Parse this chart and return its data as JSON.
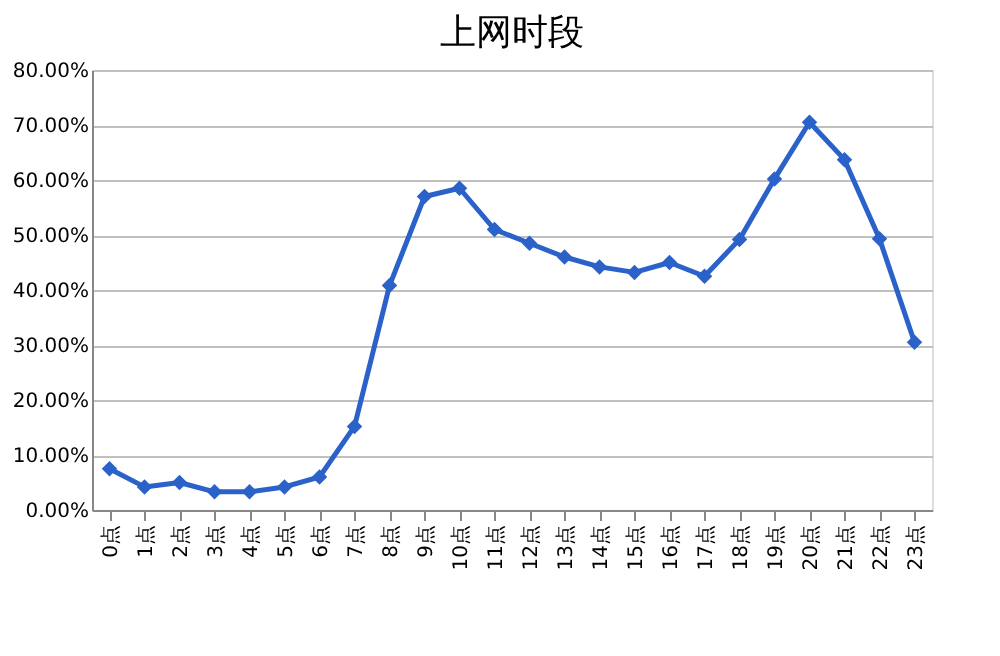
{
  "chart_data": {
    "type": "line",
    "title": "上网时段",
    "categories": [
      "0点",
      "1点",
      "2点",
      "3点",
      "4点",
      "5点",
      "6点",
      "7点",
      "8点",
      "9点",
      "10点",
      "11点",
      "12点",
      "13点",
      "14点",
      "15点",
      "16点",
      "17点",
      "18点",
      "19点",
      "20点",
      "21点",
      "22点",
      "23点"
    ],
    "series": [
      {
        "color": "#2a62c9",
        "values": [
          7.5,
          4.2,
          5.0,
          3.3,
          3.3,
          4.2,
          6.0,
          15.2,
          40.8,
          57.0,
          58.5,
          51.0,
          48.5,
          46.0,
          44.2,
          43.2,
          45.0,
          42.5,
          49.2,
          60.2,
          70.5,
          63.7,
          49.3,
          30.5
        ]
      }
    ],
    "ylim": [
      0,
      80
    ],
    "yticks": [
      {
        "value": 0,
        "label": "0.00%"
      },
      {
        "value": 10,
        "label": "10.00%"
      },
      {
        "value": 20,
        "label": "20.00%"
      },
      {
        "value": 30,
        "label": "30.00%"
      },
      {
        "value": 40,
        "label": "40.00%"
      },
      {
        "value": 50,
        "label": "50.00%"
      },
      {
        "value": 60,
        "label": "60.00%"
      },
      {
        "value": 70,
        "label": "70.00%"
      },
      {
        "value": 80,
        "label": "80.00%"
      }
    ],
    "grid": "y",
    "marker": "diamond",
    "line_style": "solid"
  }
}
